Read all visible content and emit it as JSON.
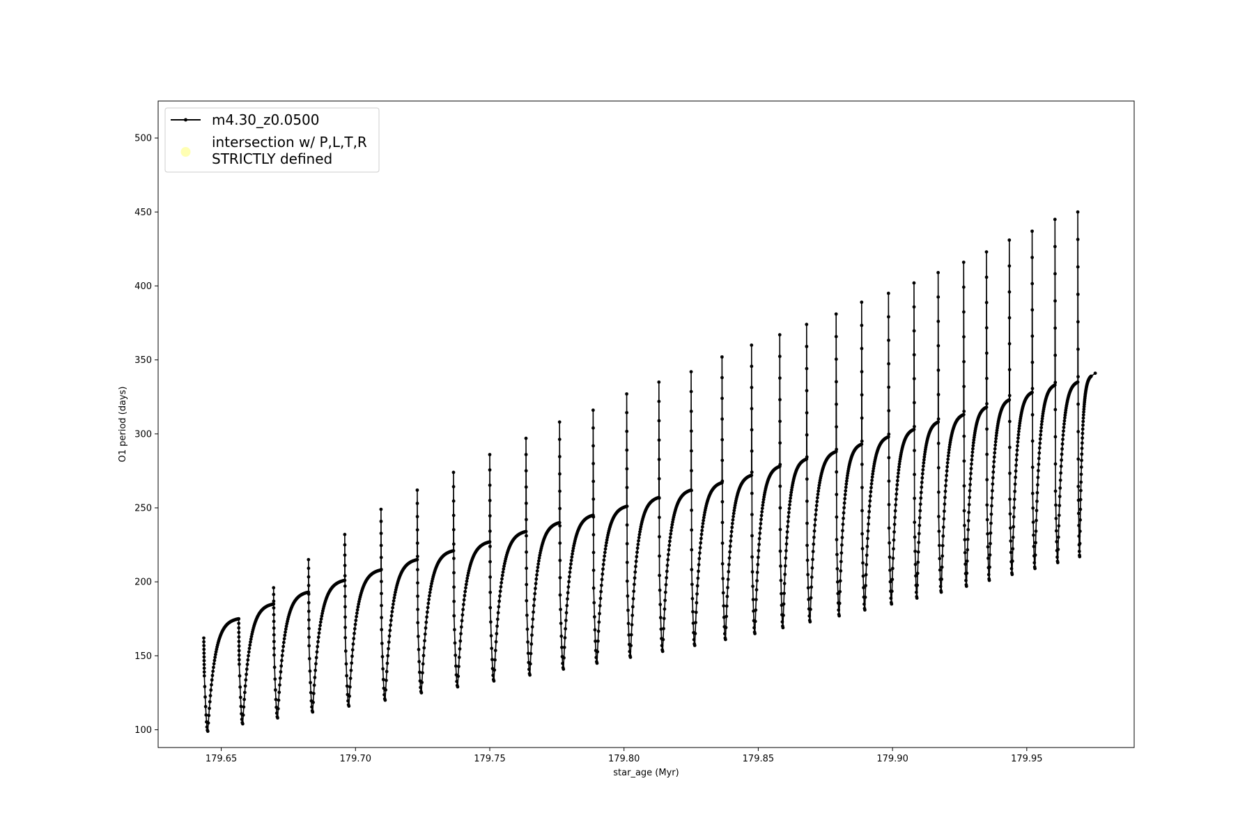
{
  "chart_data": {
    "type": "line",
    "title": "",
    "xlabel": "star_age (Myr)",
    "ylabel": "O1 period (days)",
    "xlim": [
      179.6265,
      179.99
    ],
    "ylim": [
      88,
      525
    ],
    "xticks": [
      179.65,
      179.7,
      179.75,
      179.8,
      179.85,
      179.9,
      179.95
    ],
    "xtick_labels": [
      "179.65",
      "179.70",
      "179.75",
      "179.80",
      "179.85",
      "179.90",
      "179.95"
    ],
    "yticks": [
      100,
      150,
      200,
      250,
      300,
      350,
      400,
      450,
      500
    ],
    "ytick_labels": [
      "100",
      "150",
      "200",
      "250",
      "300",
      "350",
      "400",
      "450",
      "500"
    ],
    "grid": false,
    "legend_position": "upper-left",
    "legend": [
      {
        "label": "m4.30_z0.0500",
        "marker": "line-with-dot",
        "color": "#000000"
      },
      {
        "label": "intersection w/ P,L,T,R\nSTRICTLY defined",
        "marker": "circle",
        "color": "#ffffb3"
      }
    ],
    "series": [
      {
        "name": "m4.30_z0.0500",
        "color": "#000000",
        "cycles": [
          {
            "start": 179.6435,
            "peak_spike": 162,
            "trough": 99,
            "plateau": 175,
            "end": 179.6565
          },
          {
            "start": 179.6565,
            "peak_spike": 175,
            "trough": 104,
            "plateau": 185,
            "end": 179.6695
          },
          {
            "start": 179.6695,
            "peak_spike": 196,
            "trough": 108,
            "plateau": 193,
            "end": 179.6825
          },
          {
            "start": 179.6825,
            "peak_spike": 215,
            "trough": 112,
            "plateau": 201,
            "end": 179.696
          },
          {
            "start": 179.696,
            "peak_spike": 232,
            "trough": 116,
            "plateau": 208,
            "end": 179.7095
          },
          {
            "start": 179.7095,
            "peak_spike": 249,
            "trough": 120,
            "plateau": 215,
            "end": 179.723
          },
          {
            "start": 179.723,
            "peak_spike": 262,
            "trough": 125,
            "plateau": 221,
            "end": 179.7365
          },
          {
            "start": 179.7365,
            "peak_spike": 274,
            "trough": 129,
            "plateau": 227,
            "end": 179.75
          },
          {
            "start": 179.75,
            "peak_spike": 286,
            "trough": 133,
            "plateau": 234,
            "end": 179.7635
          },
          {
            "start": 179.7635,
            "peak_spike": 297,
            "trough": 137,
            "plateau": 240,
            "end": 179.776
          },
          {
            "start": 179.776,
            "peak_spike": 308,
            "trough": 141,
            "plateau": 245,
            "end": 179.7885
          },
          {
            "start": 179.7885,
            "peak_spike": 316,
            "trough": 145,
            "plateau": 251,
            "end": 179.801
          },
          {
            "start": 179.801,
            "peak_spike": 327,
            "trough": 149,
            "plateau": 257,
            "end": 179.813
          },
          {
            "start": 179.813,
            "peak_spike": 335,
            "trough": 153,
            "plateau": 262,
            "end": 179.825
          },
          {
            "start": 179.825,
            "peak_spike": 342,
            "trough": 157,
            "plateau": 267,
            "end": 179.8365
          },
          {
            "start": 179.8365,
            "peak_spike": 352,
            "trough": 161,
            "plateau": 272,
            "end": 179.8475
          },
          {
            "start": 179.8475,
            "peak_spike": 360,
            "trough": 165,
            "plateau": 278,
            "end": 179.858
          },
          {
            "start": 179.858,
            "peak_spike": 367,
            "trough": 169,
            "plateau": 283,
            "end": 179.868
          },
          {
            "start": 179.868,
            "peak_spike": 374,
            "trough": 173,
            "plateau": 288,
            "end": 179.879
          },
          {
            "start": 179.879,
            "peak_spike": 381,
            "trough": 177,
            "plateau": 293,
            "end": 179.8885
          },
          {
            "start": 179.8885,
            "peak_spike": 389,
            "trough": 181,
            "plateau": 298,
            "end": 179.8985
          },
          {
            "start": 179.8985,
            "peak_spike": 395,
            "trough": 185,
            "plateau": 303,
            "end": 179.908
          },
          {
            "start": 179.908,
            "peak_spike": 402,
            "trough": 189,
            "plateau": 308,
            "end": 179.917
          },
          {
            "start": 179.917,
            "peak_spike": 409,
            "trough": 193,
            "plateau": 313,
            "end": 179.9265
          },
          {
            "start": 179.9265,
            "peak_spike": 416,
            "trough": 197,
            "plateau": 318,
            "end": 179.935
          },
          {
            "start": 179.935,
            "peak_spike": 423,
            "trough": 201,
            "plateau": 323,
            "end": 179.9435
          },
          {
            "start": 179.9435,
            "peak_spike": 431,
            "trough": 205,
            "plateau": 328,
            "end": 179.952
          },
          {
            "start": 179.952,
            "peak_spike": 437,
            "trough": 209,
            "plateau": 333,
            "end": 179.9605
          },
          {
            "start": 179.9605,
            "peak_spike": 445,
            "trough": 213,
            "plateau": 335,
            "end": 179.969
          },
          {
            "start": 179.969,
            "peak_spike": 450,
            "trough": 217,
            "plateau": 339,
            "end": 179.974
          }
        ],
        "final_point": [
          179.9755,
          341
        ]
      }
    ]
  }
}
